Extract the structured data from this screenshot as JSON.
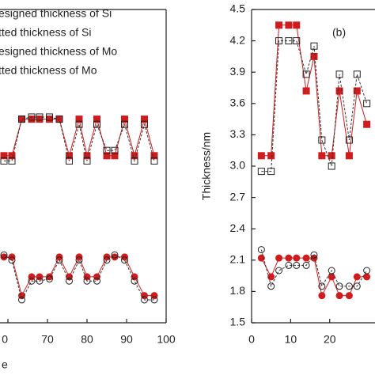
{
  "chart_data": [
    {
      "type": "line",
      "xlabel": "e",
      "xlim": [
        58,
        100
      ],
      "xticks": [
        {
          "value": 60,
          "label": "0"
        },
        70,
        80,
        90,
        100
      ],
      "ylim": [
        1.5,
        4.5
      ],
      "legend": "top-left",
      "x": [
        59,
        61,
        63.5,
        66,
        68,
        70.5,
        73,
        75.5,
        78,
        80,
        82.5,
        85,
        87,
        89.5,
        92,
        94.5,
        97
      ],
      "series": [
        {
          "name": "esigned thickness of Si",
          "color": "#d01c1c",
          "marker": "square",
          "filled": true,
          "values": [
            3.1,
            3.1,
            3.45,
            3.45,
            3.45,
            3.45,
            3.45,
            3.1,
            3.45,
            3.1,
            3.45,
            3.1,
            3.1,
            3.45,
            3.1,
            3.45,
            3.1
          ]
        },
        {
          "name": "tted thickness of Si",
          "color": "#333333",
          "marker": "square",
          "filled": false,
          "values": [
            3.05,
            3.05,
            3.45,
            3.47,
            3.47,
            3.47,
            3.45,
            3.05,
            3.4,
            3.05,
            3.4,
            3.15,
            3.15,
            3.4,
            3.05,
            3.4,
            3.05
          ]
        },
        {
          "name": "esigned thickness of Mo",
          "color": "#d01c1c",
          "marker": "circle",
          "filled": true,
          "values": [
            2.13,
            2.13,
            1.76,
            1.94,
            1.94,
            1.94,
            2.13,
            1.94,
            2.13,
            1.94,
            1.94,
            2.13,
            2.13,
            2.13,
            1.94,
            1.76,
            1.76
          ]
        },
        {
          "name": "tted thickness of Mo",
          "color": "#333333",
          "marker": "circle",
          "filled": false,
          "values": [
            2.15,
            2.1,
            1.72,
            1.9,
            1.9,
            1.92,
            2.1,
            1.9,
            2.1,
            1.9,
            1.9,
            2.1,
            2.15,
            2.1,
            1.9,
            1.72,
            1.72
          ]
        }
      ]
    },
    {
      "type": "line",
      "annotation": "(b)",
      "ylabel": "Thickness/nm",
      "xlim": [
        0,
        31.6
      ],
      "xticks": [
        0,
        10,
        20
      ],
      "ylim": [
        1.5,
        4.5
      ],
      "yticks": [
        1.5,
        1.8,
        2.1,
        2.4,
        2.7,
        {
          "value": 3,
          "label": "3.0"
        },
        3.3,
        3.6,
        3.9,
        4.2,
        4.5
      ],
      "x": [
        2.5,
        5,
        7,
        9.5,
        11.5,
        14,
        16,
        18,
        20.5,
        22.5,
        25,
        27,
        29.5
      ],
      "series": [
        {
          "color": "#d01c1c",
          "marker": "square",
          "filled": true,
          "values": [
            3.1,
            3.1,
            4.35,
            4.35,
            4.35,
            3.72,
            4.05,
            3.1,
            3.1,
            3.72,
            3.1,
            3.72,
            3.4
          ]
        },
        {
          "color": "#333333",
          "marker": "square",
          "filled": false,
          "values": [
            2.95,
            2.95,
            4.2,
            4.2,
            4.2,
            3.88,
            4.15,
            3.25,
            3.0,
            3.88,
            3.25,
            3.88,
            3.6
          ]
        },
        {
          "color": "#d01c1c",
          "marker": "circle",
          "filled": true,
          "values": [
            2.12,
            1.94,
            2.12,
            2.12,
            2.12,
            2.12,
            2.12,
            1.76,
            1.94,
            1.76,
            1.76,
            1.94,
            1.94
          ]
        },
        {
          "color": "#333333",
          "marker": "circle",
          "filled": false,
          "values": [
            2.2,
            1.85,
            2.0,
            2.05,
            2.05,
            2.05,
            2.15,
            1.85,
            2.0,
            1.85,
            1.85,
            1.85,
            2.0
          ]
        }
      ]
    }
  ]
}
